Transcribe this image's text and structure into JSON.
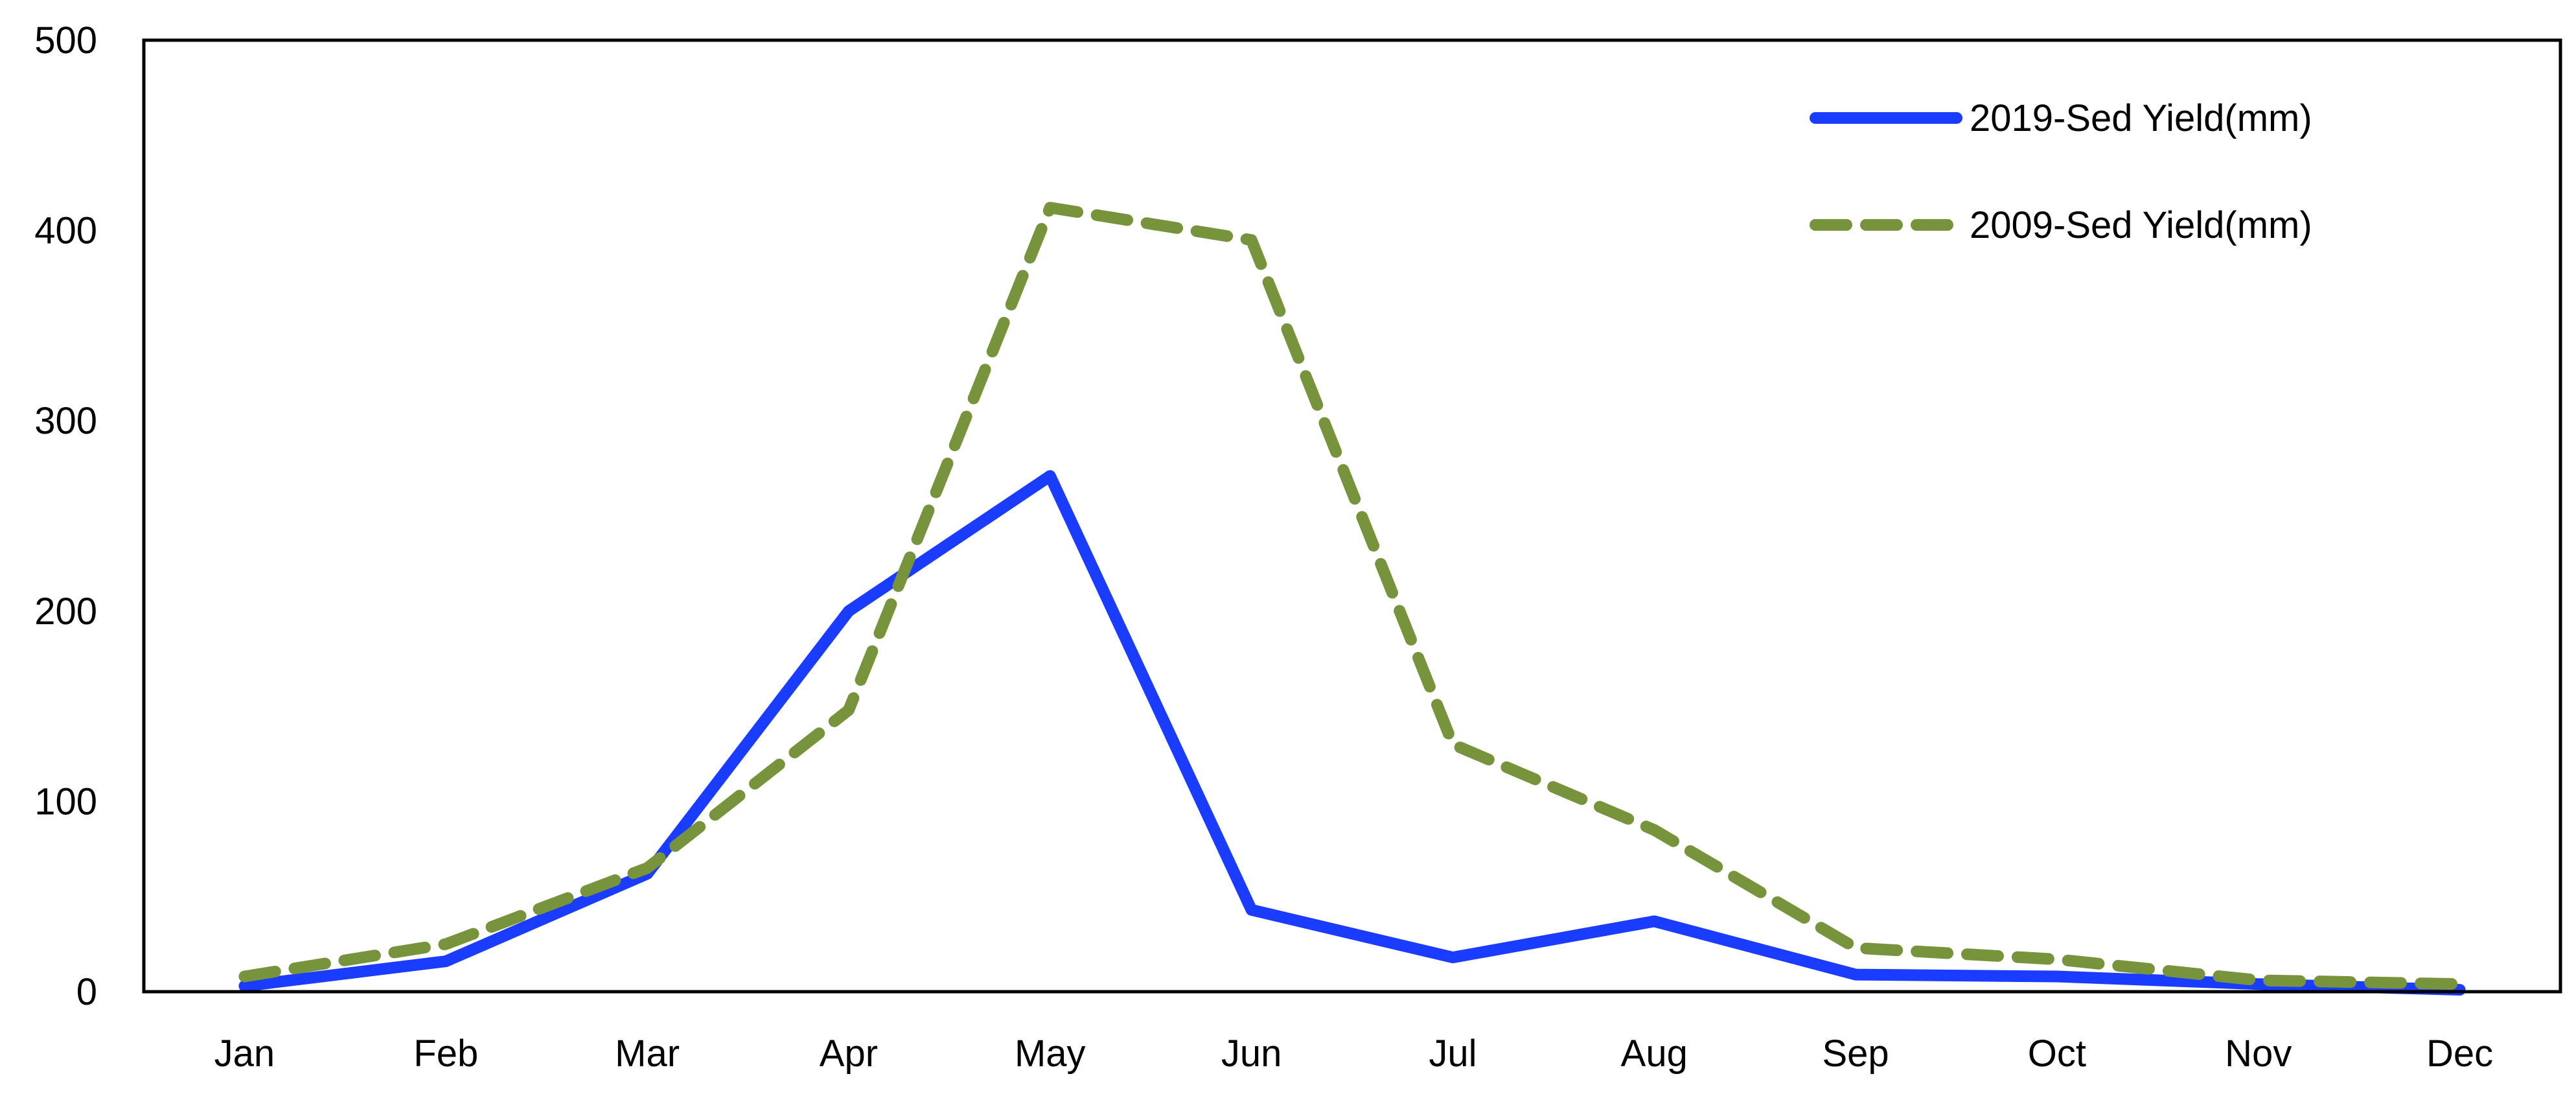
{
  "chart_data": {
    "type": "line",
    "title": "",
    "xlabel": "",
    "ylabel": "",
    "categories": [
      "Jan",
      "Feb",
      "Mar",
      "Apr",
      "May",
      "Jun",
      "Jul",
      "Aug",
      "Sep",
      "Oct",
      "Nov",
      "Dec"
    ],
    "ylim": [
      0,
      500
    ],
    "yticks": [
      "0",
      "100",
      "200",
      "300",
      "400",
      "500"
    ],
    "grid": false,
    "legend_position": "top-right",
    "series": [
      {
        "name": "2019-Sed Yield(mm)",
        "color": "#1a3cff",
        "dash": "solid",
        "values": [
          3,
          16,
          62,
          200,
          271,
          43,
          18,
          37,
          9,
          8,
          4,
          1
        ]
      },
      {
        "name": "2009-Sed Yield(mm)",
        "color": "#77933c",
        "dash": "dashed",
        "values": [
          8,
          25,
          65,
          148,
          412,
          395,
          130,
          85,
          23,
          17,
          6,
          4
        ]
      }
    ]
  }
}
